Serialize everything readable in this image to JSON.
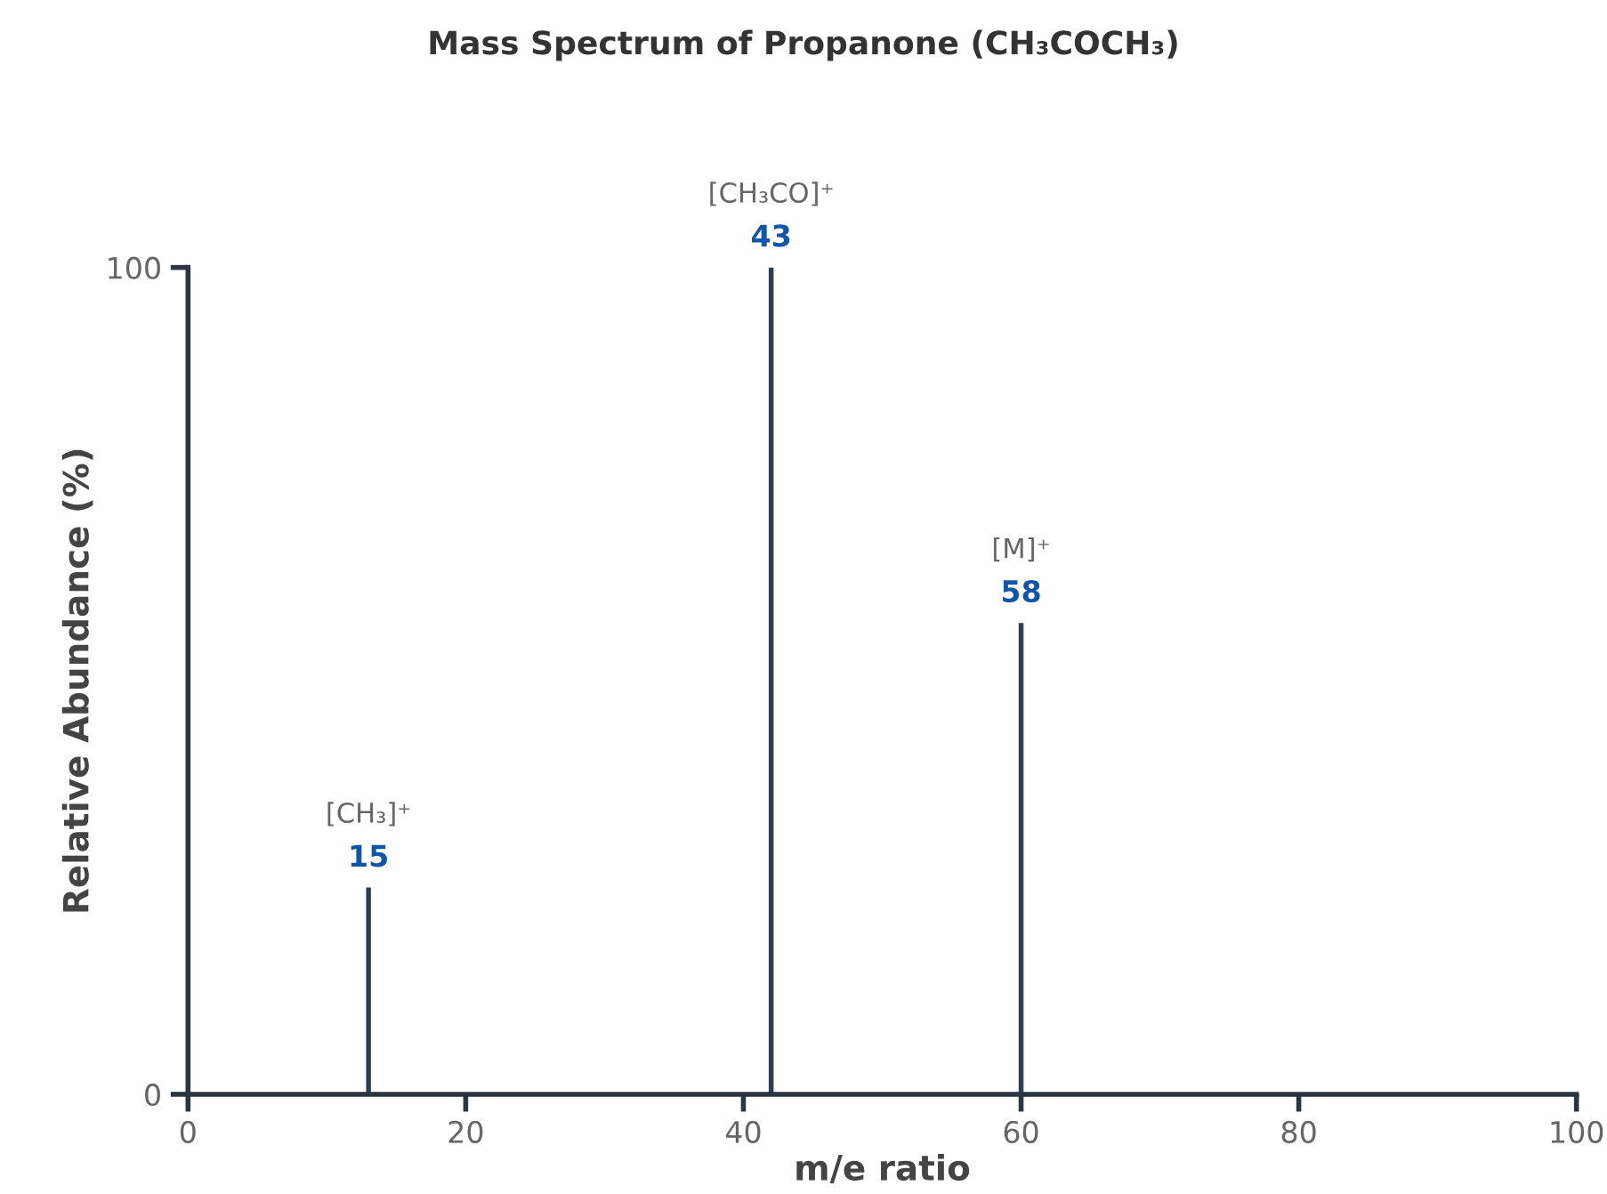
{
  "chart_data": {
    "type": "bar",
    "title": "Mass Spectrum of Propanone (CH₃COCH₃)",
    "xlabel": "m/e ratio",
    "ylabel": "Relative Abundance (%)",
    "x": [
      13,
      42,
      60
    ],
    "values": [
      25,
      100,
      57
    ],
    "color": "#2a3f54",
    "annotations": [
      {
        "text": "[CH₃]⁺",
        "x": 13,
        "y": 25
      },
      {
        "text": "15",
        "x": 13,
        "y": 25
      },
      {
        "text": "[CH₃CO]⁺",
        "x": 42,
        "y": 100
      },
      {
        "text": "43",
        "x": 42,
        "y": 100
      },
      {
        "text": "[M]⁺",
        "x": 60,
        "y": 57
      },
      {
        "text": "58",
        "x": 60,
        "y": 57
      }
    ],
    "xlim": [
      0,
      100
    ],
    "xticks": [
      0,
      20,
      40,
      60,
      80,
      100
    ],
    "ylim": [
      0,
      100
    ],
    "yticks": [
      0,
      100
    ],
    "grid": false,
    "legend": false
  }
}
